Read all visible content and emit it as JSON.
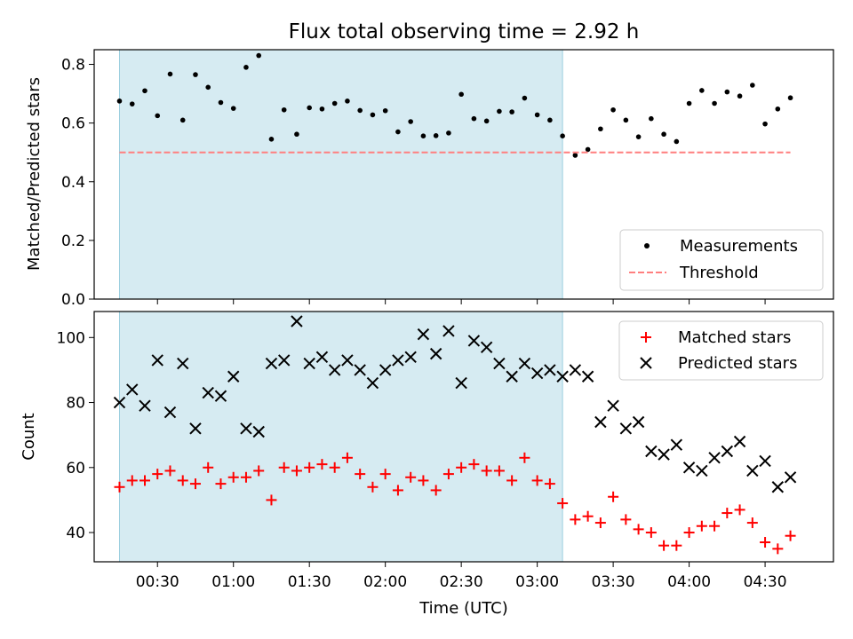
{
  "chart_data": [
    {
      "type": "scatter",
      "title": "Flux total observing time = 2.92 h",
      "xlabel": "",
      "ylabel": "Matched/Predicted stars",
      "xlim": [
        "00:05",
        "04:57"
      ],
      "ylim": [
        0,
        0.85
      ],
      "yticks": [
        0.0,
        0.2,
        0.4,
        0.6,
        0.8
      ],
      "ytick_labels": [
        "0.0",
        "0.2",
        "0.4",
        "0.6",
        "0.8"
      ],
      "shaded_region": {
        "x_start": "00:15",
        "x_end": "03:10",
        "color": "#add8e6"
      },
      "legend_position": "lower right",
      "series": [
        {
          "name": "Measurements",
          "marker": "dot",
          "color": "#000000",
          "x": [
            "00:15",
            "00:20",
            "00:25",
            "00:30",
            "00:35",
            "00:40",
            "00:45",
            "00:50",
            "00:55",
            "01:00",
            "01:05",
            "01:10",
            "01:15",
            "01:20",
            "01:25",
            "01:30",
            "01:35",
            "01:40",
            "01:45",
            "01:50",
            "01:55",
            "02:00",
            "02:05",
            "02:10",
            "02:15",
            "02:20",
            "02:25",
            "02:30",
            "02:35",
            "02:40",
            "02:45",
            "02:50",
            "02:55",
            "03:00",
            "03:05",
            "03:10",
            "03:15",
            "03:20",
            "03:25",
            "03:30",
            "03:35",
            "03:40",
            "03:45",
            "03:50",
            "03:55",
            "04:00",
            "04:05",
            "04:10",
            "04:15",
            "04:20",
            "04:25",
            "04:30",
            "04:35",
            "04:40"
          ],
          "y": [
            0.675,
            0.665,
            0.71,
            0.625,
            0.767,
            0.61,
            0.765,
            0.722,
            0.67,
            0.65,
            0.79,
            0.83,
            0.545,
            0.645,
            0.562,
            0.652,
            0.648,
            0.667,
            0.675,
            0.643,
            0.628,
            0.642,
            0.57,
            0.605,
            0.556,
            0.557,
            0.566,
            0.698,
            0.615,
            0.607,
            0.64,
            0.638,
            0.685,
            0.628,
            0.61,
            0.556,
            0.49,
            0.51,
            0.58,
            0.645,
            0.61,
            0.553,
            0.615,
            0.562,
            0.537,
            0.667,
            0.711,
            0.667,
            0.706,
            0.692,
            0.729,
            0.597,
            0.648,
            0.686
          ]
        },
        {
          "name": "Threshold",
          "style": "dashed",
          "color": "#ff7f7f",
          "x": [
            "00:15",
            "04:40"
          ],
          "y": [
            0.5,
            0.5
          ]
        }
      ]
    },
    {
      "type": "scatter",
      "title": "",
      "xlabel": "Time (UTC)",
      "ylabel": "Count",
      "xlim": [
        "00:05",
        "04:57"
      ],
      "ylim": [
        31,
        108
      ],
      "yticks": [
        40,
        60,
        80,
        100
      ],
      "ytick_labels": [
        "40",
        "60",
        "80",
        "100"
      ],
      "xticks": [
        "00:30",
        "01:00",
        "01:30",
        "02:00",
        "02:30",
        "03:00",
        "03:30",
        "04:00",
        "04:30"
      ],
      "shaded_region": {
        "x_start": "00:15",
        "x_end": "03:10",
        "color": "#add8e6"
      },
      "legend_position": "upper right",
      "series": [
        {
          "name": "Matched stars",
          "marker": "plus",
          "color": "#ff0000",
          "x": [
            "00:15",
            "00:20",
            "00:25",
            "00:30",
            "00:35",
            "00:40",
            "00:45",
            "00:50",
            "00:55",
            "01:00",
            "01:05",
            "01:10",
            "01:15",
            "01:20",
            "01:25",
            "01:30",
            "01:35",
            "01:40",
            "01:45",
            "01:50",
            "01:55",
            "02:00",
            "02:05",
            "02:10",
            "02:15",
            "02:20",
            "02:25",
            "02:30",
            "02:35",
            "02:40",
            "02:45",
            "02:50",
            "02:55",
            "03:00",
            "03:05",
            "03:10",
            "03:15",
            "03:20",
            "03:25",
            "03:30",
            "03:35",
            "03:40",
            "03:45",
            "03:50",
            "03:55",
            "04:00",
            "04:05",
            "04:10",
            "04:15",
            "04:20",
            "04:25",
            "04:30",
            "04:35",
            "04:40"
          ],
          "y": [
            54,
            56,
            56,
            58,
            59,
            56,
            55,
            60,
            55,
            57,
            57,
            59,
            50,
            60,
            59,
            60,
            61,
            60,
            63,
            58,
            54,
            58,
            53,
            57,
            56,
            53,
            58,
            60,
            61,
            59,
            59,
            56,
            63,
            56,
            55,
            49,
            44,
            45,
            43,
            51,
            44,
            41,
            40,
            36,
            36,
            40,
            42,
            42,
            46,
            47,
            43,
            37,
            35,
            39
          ]
        },
        {
          "name": "Predicted stars",
          "marker": "x",
          "color": "#000000",
          "x": [
            "00:15",
            "00:20",
            "00:25",
            "00:30",
            "00:35",
            "00:40",
            "00:45",
            "00:50",
            "00:55",
            "01:00",
            "01:05",
            "01:10",
            "01:15",
            "01:20",
            "01:25",
            "01:30",
            "01:35",
            "01:40",
            "01:45",
            "01:50",
            "01:55",
            "02:00",
            "02:05",
            "02:10",
            "02:15",
            "02:20",
            "02:25",
            "02:30",
            "02:35",
            "02:40",
            "02:45",
            "02:50",
            "02:55",
            "03:00",
            "03:05",
            "03:10",
            "03:15",
            "03:20",
            "03:25",
            "03:30",
            "03:35",
            "03:40",
            "03:45",
            "03:50",
            "03:55",
            "04:00",
            "04:05",
            "04:10",
            "04:15",
            "04:20",
            "04:25",
            "04:30",
            "04:35",
            "04:40"
          ],
          "y": [
            80,
            84,
            79,
            93,
            77,
            92,
            72,
            83,
            82,
            88,
            72,
            71,
            92,
            93,
            105,
            92,
            94,
            90,
            93,
            90,
            86,
            90,
            93,
            94,
            101,
            95,
            102,
            86,
            99,
            97,
            92,
            88,
            92,
            89,
            90,
            88,
            90,
            88,
            74,
            79,
            72,
            74,
            65,
            64,
            67,
            60,
            59,
            63,
            65,
            68,
            59,
            62,
            54,
            57
          ]
        }
      ]
    }
  ]
}
